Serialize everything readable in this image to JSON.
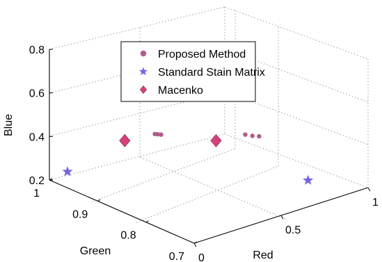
{
  "chart_data": {
    "type": "scatter",
    "dimensions": 3,
    "title": "",
    "xlabel": "Red",
    "ylabel": "Green",
    "zlabel": "Blue",
    "xlim": [
      0,
      1
    ],
    "ylim": [
      0.7,
      1
    ],
    "zlim": [
      0.2,
      0.8
    ],
    "x_ticks": [
      {
        "value": 0,
        "label": "0"
      },
      {
        "value": 0.5,
        "label": "0.5"
      },
      {
        "value": 1,
        "label": "1"
      }
    ],
    "y_ticks": [
      {
        "value": 0.7,
        "label": "0.7"
      },
      {
        "value": 0.8,
        "label": "0.8"
      },
      {
        "value": 0.9,
        "label": "0.9"
      },
      {
        "value": 1,
        "label": "1"
      }
    ],
    "z_ticks": [
      {
        "value": 0.2,
        "label": "0.2"
      },
      {
        "value": 0.4,
        "label": "0.4"
      },
      {
        "value": 0.6,
        "label": "0.6"
      },
      {
        "value": 0.8,
        "label": "0.8"
      }
    ],
    "grid": true,
    "legend_position": "top-center",
    "series": [
      {
        "name": "Proposed Method",
        "marker": "circle",
        "color": "#b05a8c",
        "points": [
          [
            0.157,
            0.838,
            0.528
          ],
          [
            0.163,
            0.834,
            0.529
          ],
          [
            0.168,
            0.829,
            0.531
          ],
          [
            0.441,
            0.753,
            0.535
          ],
          [
            0.457,
            0.744,
            0.534
          ],
          [
            0.479,
            0.738,
            0.532
          ]
        ]
      },
      {
        "name": "Standard Stain Matrix",
        "marker": "star",
        "color": "#7766dd",
        "points": [
          [
            0.09,
            0.995,
            0.22
          ],
          [
            0.785,
            0.747,
            0.243
          ]
        ]
      },
      {
        "name": "Macenko",
        "marker": "diamond",
        "color": "#d9407a",
        "points": [
          [
            0.081,
            0.873,
            0.483
          ],
          [
            0.359,
            0.784,
            0.498
          ]
        ]
      }
    ]
  }
}
